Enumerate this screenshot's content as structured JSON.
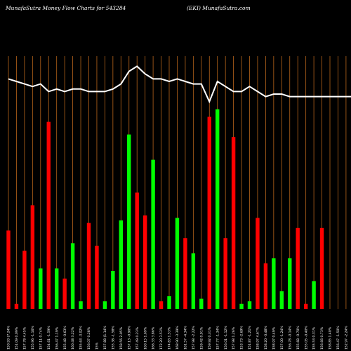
{
  "header": {
    "left": "MunafaSutra  Money Flow  Charts for 543284",
    "right": "(EKI) MunafaSutra.com"
  },
  "colors": {
    "background": "#000000",
    "grid": "#b8651b",
    "up": "#00ff00",
    "down": "#ff0000",
    "price_line": "#ffffff"
  },
  "chart_data": {
    "type": "bar",
    "title": "MunafaSutra  Money Flow  Charts for 543284",
    "subtitle": "(EKI) MunafaSutra.com",
    "grid": true,
    "ylim": [
      0,
      100
    ],
    "categories": [
      "150.93 (7.24%",
      "151.09 0.09%",
      "157.78 4.45%",
      "155.96 -1.16%",
      "157.11 0.74%",
      "154.61 -1.59%",
      "156.47 1.19%",
      "155.48 -0.63%",
      "160.48 3.22%",
      "155.63 -3.02%",
      "156.07 0.28%",
      "15%",
      "157.88 (1.14%",
      "155.38 -1.58%",
      "158.56 2.05%",
      "157.13 -0.90%",
      "157.49 0.23%",
      "160.15 1.69%",
      "166.33 3.86%",
      "172.20 3.53%",
      "174.83 1.53%",
      "168.90 -3.39%",
      "161.57 -4.34%",
      "157.98 -2.22%",
      "159.42 0.91%",
      "159.92 0.31%",
      "157.77 -1.34%",
      "156.01 -1.12%",
      "157.98 1.26%",
      "153.73 -2.69%",
      "151.87 -1.21%",
      "158.97 4.67%",
      "158.20 -0.48%",
      "158.97 0.49%",
      "157.00 -1.24%",
      "156.78 -0.14%",
      "155.68 -0.70%",
      "155.05 -0.40%",
      "155.53 0.31%",
      "156.66 0.73%",
      "158.85 1.40%",
      "156.47 -1.50%",
      "152.97 -2.24%",
      "155.17 1.44%",
      "150.22 -3.19%"
    ],
    "bar_colors": [
      "red",
      "red",
      "red",
      "red",
      "green",
      "red",
      "green",
      "red",
      "green",
      "green",
      "red",
      "red",
      "green",
      "green",
      "green",
      "green",
      "red",
      "red",
      "green",
      "red",
      "green",
      "green",
      "red",
      "green",
      "green",
      "red",
      "green",
      "red",
      "red",
      "green",
      "green",
      "red",
      "red",
      "green",
      "green",
      "green",
      "red",
      "red",
      "green",
      "red",
      "red",
      "red",
      "green",
      "green",
      "red"
    ],
    "values": [
      31,
      2,
      23,
      41,
      16,
      74,
      16,
      12,
      26,
      3,
      34,
      25,
      3,
      15,
      35,
      69,
      46,
      37,
      59,
      3,
      5,
      36,
      28,
      22,
      4,
      76,
      79,
      28,
      68,
      2,
      3,
      36,
      18,
      20,
      7,
      20,
      32,
      2,
      11,
      32,
      0,
      0,
      0,
      0,
      0
    ],
    "line": [
      91,
      90,
      89,
      88,
      89,
      86,
      87,
      86,
      87,
      87,
      86,
      86,
      86,
      87,
      89,
      94,
      96,
      93,
      91,
      91,
      90,
      91,
      90,
      89,
      89,
      82,
      90,
      88,
      86,
      86,
      88,
      86,
      84,
      85,
      85,
      84,
      84,
      84,
      84,
      84,
      84,
      84,
      84,
      84,
      80
    ]
  }
}
